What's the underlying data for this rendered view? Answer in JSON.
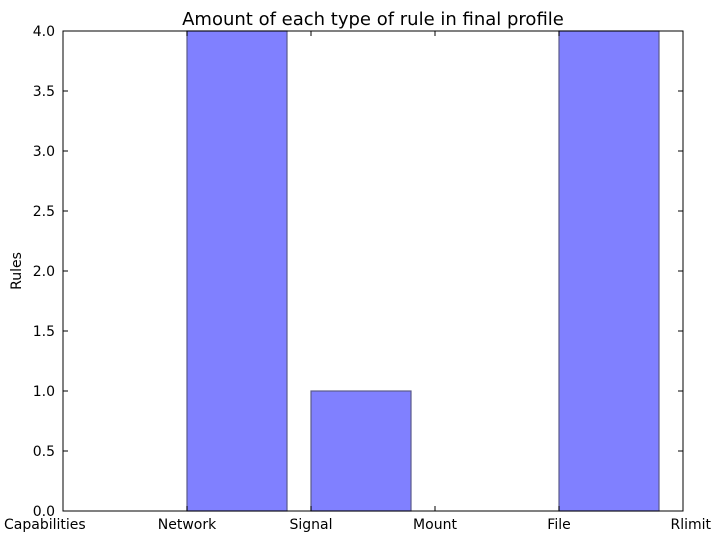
{
  "chart_data": {
    "type": "bar",
    "title": "Amount of each type of rule in final profile",
    "xlabel": "",
    "ylabel": "Rules",
    "categories": [
      "Capabilities",
      "Network",
      "Signal",
      "Mount",
      "File",
      "Rlimit"
    ],
    "values": [
      0,
      4,
      1,
      0,
      4,
      0
    ],
    "ylim": [
      0,
      4
    ],
    "yticks": [
      "0.0",
      "0.5",
      "1.0",
      "1.5",
      "2.0",
      "2.5",
      "3.0",
      "3.5",
      "4.0"
    ],
    "grid": false,
    "legend": "none",
    "bar_color": "#8080ff",
    "bar_edge_color": "#5a5a8a"
  }
}
